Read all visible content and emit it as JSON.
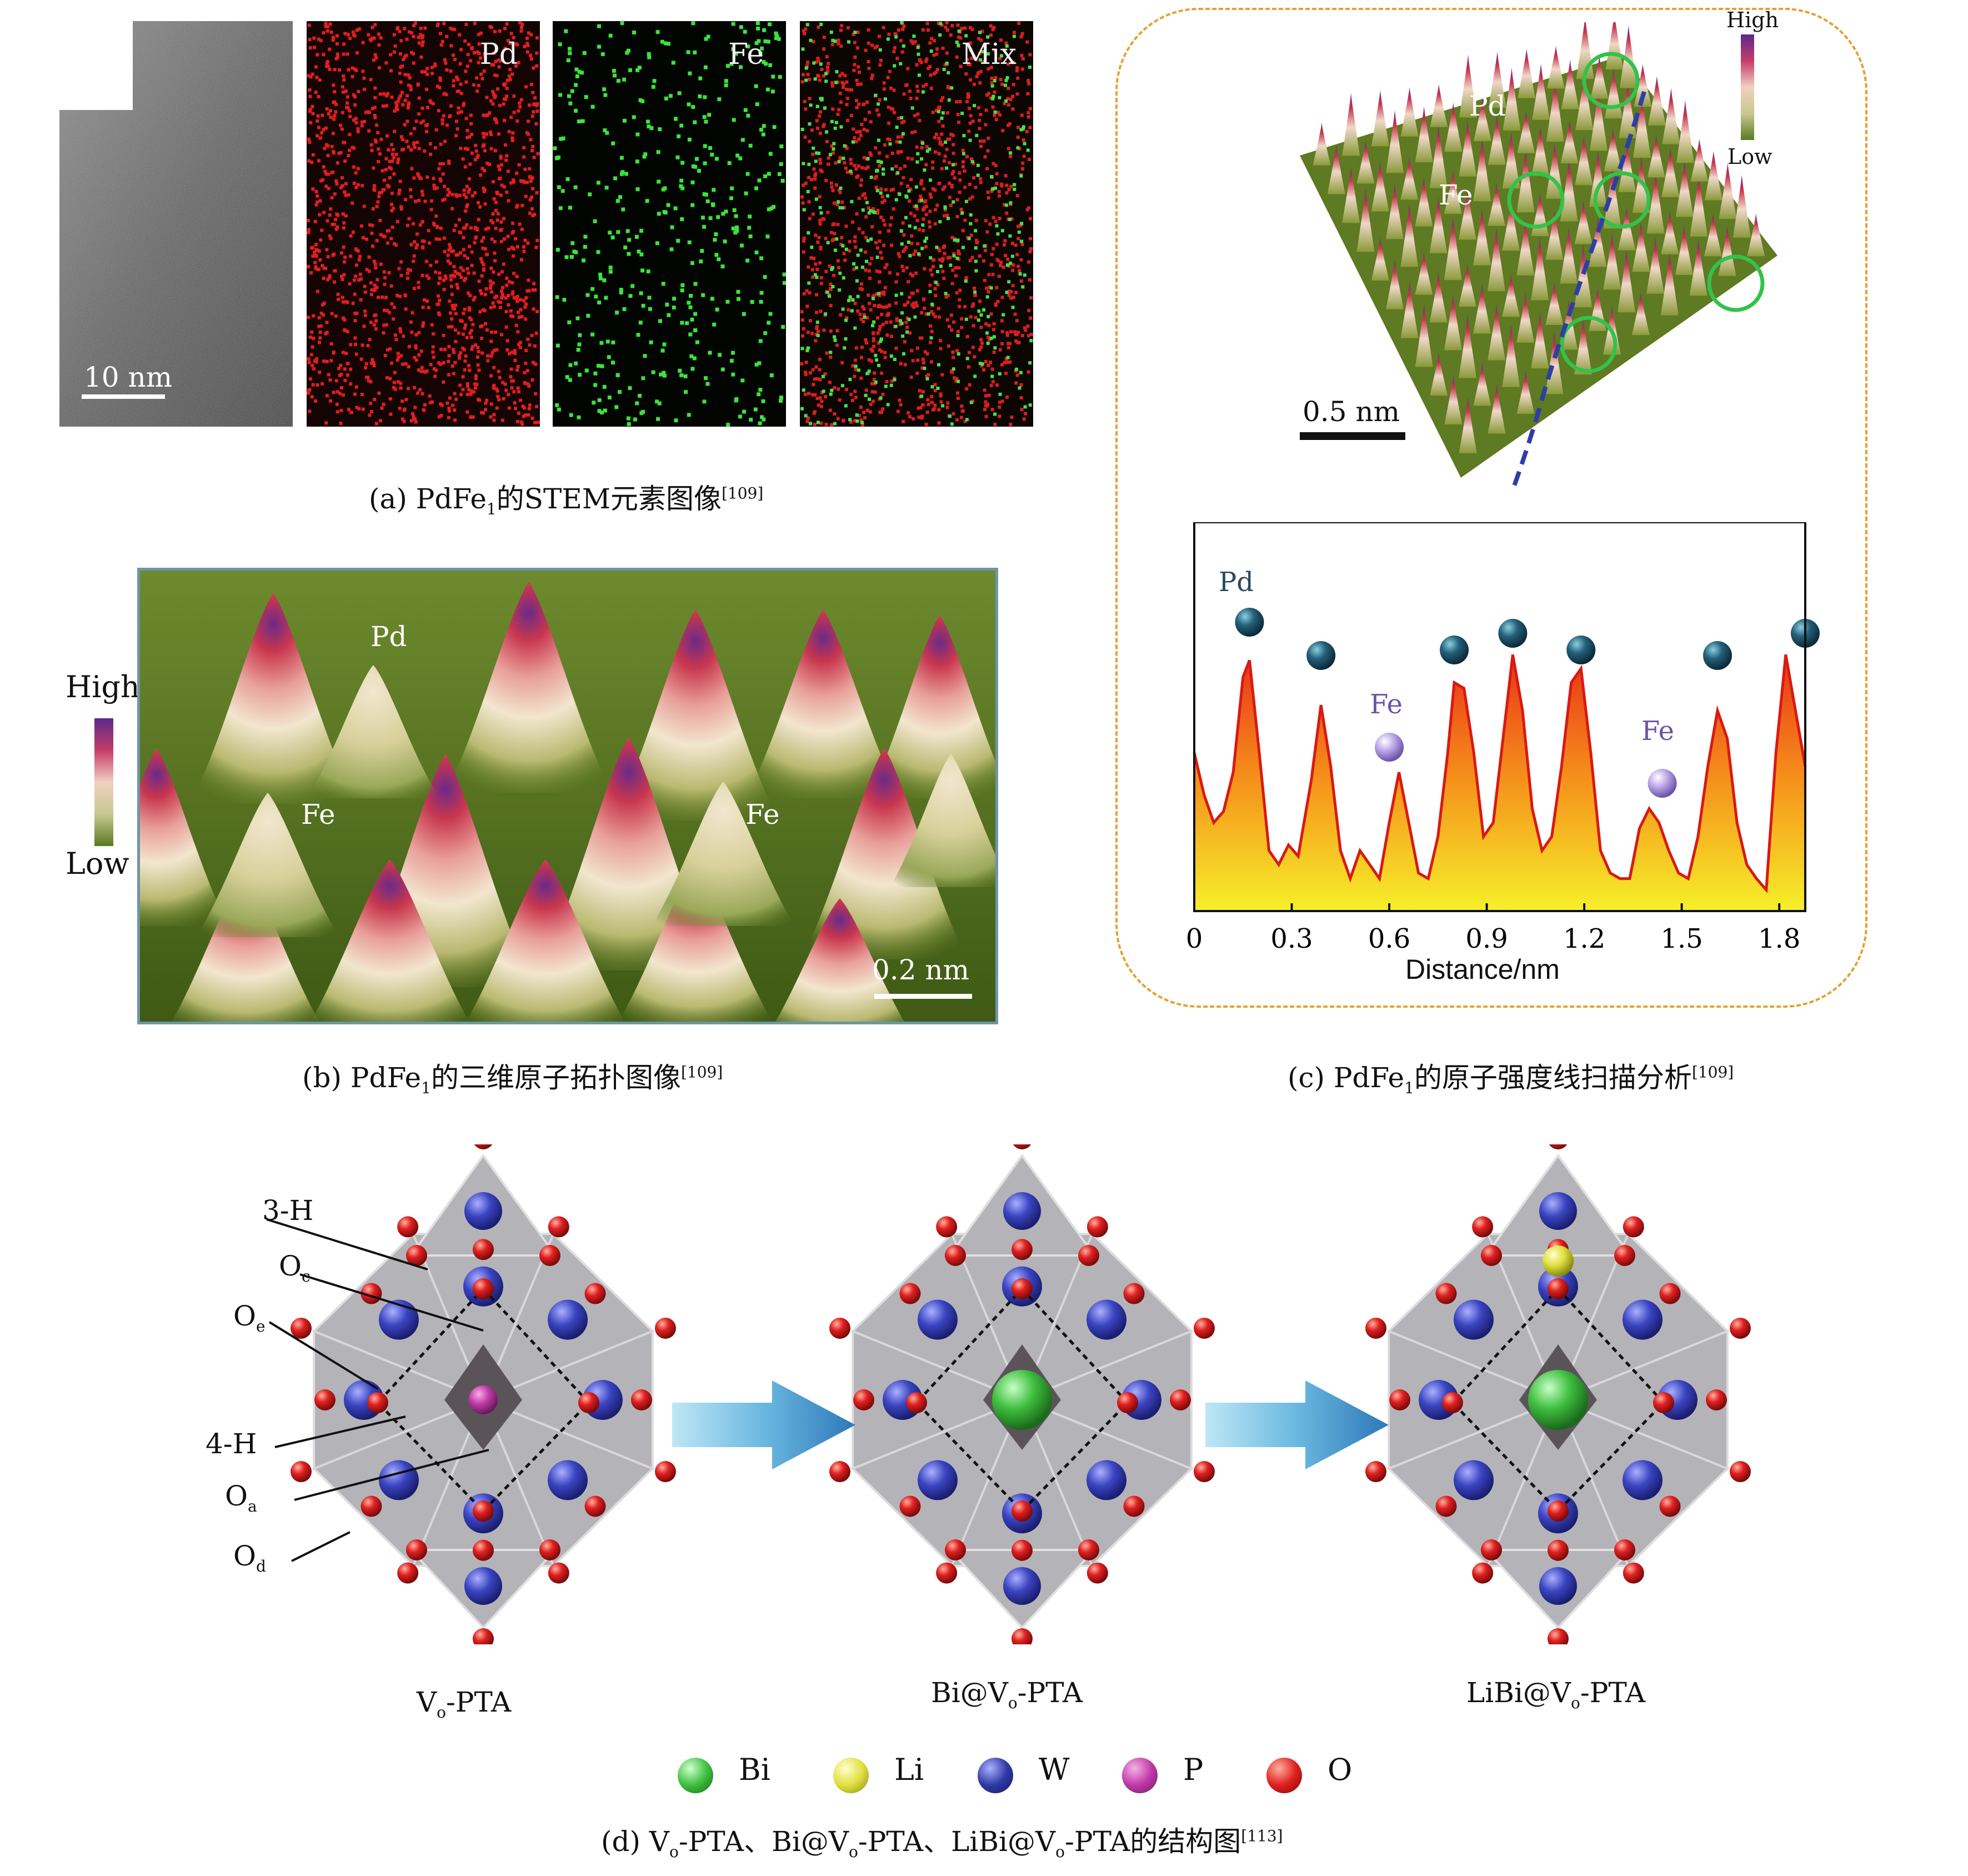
{
  "panel_a": {
    "tiles": [
      "",
      "Pd",
      "Fe",
      "Mix"
    ],
    "scale_bar": "10 nm",
    "caption": {
      "prefix": "(a) PdFe",
      "sub": "1",
      "rest": "的STEM元素图像",
      "ref": "[109]"
    }
  },
  "panel_b": {
    "legend_high": "High",
    "legend_low": "Low",
    "labels": {
      "pd": "Pd",
      "fe1": "Fe",
      "fe2": "Fe"
    },
    "scale_bar": "0.2 nm",
    "caption": {
      "prefix": "(b) PdFe",
      "sub": "1",
      "rest": "的三维原子拓扑图像",
      "ref": "[109]"
    }
  },
  "panel_c": {
    "legend_high": "High",
    "legend_low": "Low",
    "surface_labels": {
      "pd": "Pd",
      "fe": "Fe"
    },
    "scale_bar": "0.5 nm",
    "plot_labels": {
      "pd": "Pd",
      "fe1": "Fe",
      "fe2": "Fe"
    },
    "caption": {
      "prefix": "(c) PdFe",
      "sub": "1",
      "rest": "的原子强度线扫描分析",
      "ref": "[109]"
    }
  },
  "panel_d": {
    "structures": [
      {
        "pre": "V",
        "sub": "o",
        "post": "-PTA"
      },
      {
        "pre": "Bi@V",
        "sub": "o",
        "post": "-PTA"
      },
      {
        "pre": "LiBi@V",
        "sub": "o",
        "post": "-PTA"
      }
    ],
    "site_labels": {
      "h3": "3-H",
      "oc": {
        "main": "O",
        "sub": "c"
      },
      "oe": {
        "main": "O",
        "sub": "e"
      },
      "h4": "4-H",
      "oa": {
        "main": "O",
        "sub": "a"
      },
      "od": {
        "main": "O",
        "sub": "d"
      }
    },
    "legend": [
      {
        "label": "Bi",
        "color": "#3fbf3f"
      },
      {
        "label": "Li",
        "color": "#e0e040"
      },
      {
        "label": "W",
        "color": "#2e3aa6"
      },
      {
        "label": "P",
        "color": "#c03aa8"
      },
      {
        "label": "O",
        "color": "#e02020"
      }
    ],
    "caption": {
      "p1": "(d) V",
      "s1": "o",
      "p2": "-PTA、Bi@V",
      "s2": "o",
      "p3": "-PTA、LiBi@V",
      "s3": "o",
      "p4": "-PTA的结构图",
      "ref": "[113]"
    }
  },
  "chart_data": {
    "type": "line",
    "xlabel": "Distance/nm",
    "ylabel": "",
    "xlim": [
      0,
      1.88
    ],
    "xticks": [
      "0",
      "0.3",
      "0.6",
      "0.9",
      "1.2",
      "1.5",
      "1.8"
    ],
    "x": [
      0,
      0.03,
      0.06,
      0.09,
      0.12,
      0.15,
      0.17,
      0.2,
      0.23,
      0.26,
      0.29,
      0.32,
      0.36,
      0.39,
      0.42,
      0.45,
      0.48,
      0.51,
      0.54,
      0.57,
      0.6,
      0.63,
      0.66,
      0.69,
      0.72,
      0.75,
      0.78,
      0.8,
      0.83,
      0.86,
      0.89,
      0.92,
      0.95,
      0.98,
      1.01,
      1.04,
      1.07,
      1.1,
      1.13,
      1.16,
      1.19,
      1.22,
      1.25,
      1.28,
      1.31,
      1.34,
      1.37,
      1.4,
      1.43,
      1.46,
      1.49,
      1.52,
      1.55,
      1.58,
      1.61,
      1.64,
      1.67,
      1.7,
      1.73,
      1.76,
      1.79,
      1.82,
      1.85,
      1.88
    ],
    "series": [
      {
        "values": [
          0.55,
          0.4,
          0.3,
          0.34,
          0.48,
          0.82,
          0.88,
          0.55,
          0.2,
          0.15,
          0.22,
          0.18,
          0.45,
          0.72,
          0.5,
          0.2,
          0.1,
          0.2,
          0.15,
          0.1,
          0.3,
          0.48,
          0.3,
          0.12,
          0.1,
          0.25,
          0.55,
          0.8,
          0.78,
          0.55,
          0.25,
          0.3,
          0.6,
          0.9,
          0.7,
          0.35,
          0.2,
          0.25,
          0.5,
          0.8,
          0.85,
          0.55,
          0.2,
          0.12,
          0.1,
          0.1,
          0.28,
          0.35,
          0.3,
          0.2,
          0.12,
          0.1,
          0.25,
          0.5,
          0.7,
          0.6,
          0.3,
          0.15,
          0.1,
          0.06,
          0.55,
          0.9,
          0.7,
          0.5
        ]
      }
    ]
  }
}
